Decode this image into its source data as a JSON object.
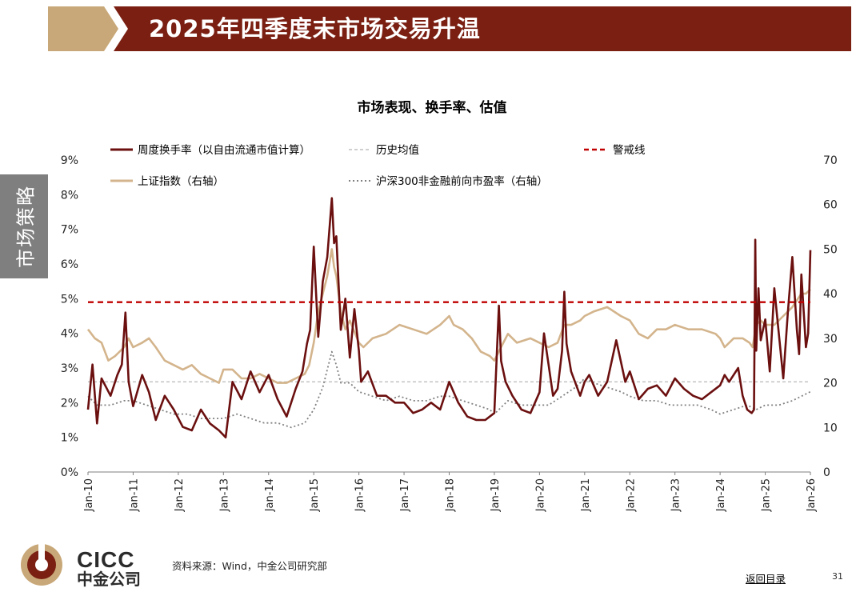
{
  "header": {
    "title": "2025年四季度末市场交易升温"
  },
  "side_tab": {
    "label": "市场策略"
  },
  "footer": {
    "logo_en": "CICC",
    "logo_cn": "中金公司",
    "source": "资料来源：Wind，中金公司研究部",
    "back_link": "返回目录",
    "page_number": "31"
  },
  "colors": {
    "brand": "#7a1f12",
    "turnover": "#6b0f0f",
    "hist_avg": "#bfbfbf",
    "warning": "#c00000",
    "index": "#d3b48c",
    "pe": "#808080",
    "gold": "#c8a878"
  },
  "chart_data": {
    "type": "line",
    "title": "市场表现、换手率、估值",
    "x_ticks": [
      "Jan-10",
      "Jan-11",
      "Jan-12",
      "Jan-13",
      "Jan-14",
      "Jan-15",
      "Jan-16",
      "Jan-17",
      "Jan-18",
      "Jan-19",
      "Jan-20",
      "Jan-21",
      "Jan-22",
      "Jan-23",
      "Jan-24",
      "Jan-25",
      "Jan-26"
    ],
    "x_range": [
      2010.0,
      2026.0
    ],
    "y_left": {
      "range": [
        0,
        9
      ],
      "ticks": [
        "0%",
        "1%",
        "2%",
        "3%",
        "4%",
        "5%",
        "6%",
        "7%",
        "8%",
        "9%"
      ]
    },
    "y_right": {
      "range": [
        0,
        70
      ],
      "ticks": [
        "0",
        "10",
        "20",
        "30",
        "40",
        "50",
        "60",
        "70"
      ]
    },
    "legend": {
      "turnover": "周度换手率（以自由流通市值计算）",
      "hist_avg": "历史均值",
      "warning": "警戒线",
      "index": "上证指数（右轴）",
      "pe": "沪深300非金融前向市盈率（右轴）"
    },
    "series": [
      {
        "name": "周度换手率（以自由流通市值计算）",
        "axis": "left",
        "unit": "%",
        "x": [
          2010.0,
          2010.1,
          2010.2,
          2010.3,
          2010.5,
          2010.65,
          2010.75,
          2010.83,
          2010.9,
          2011.0,
          2011.2,
          2011.35,
          2011.5,
          2011.7,
          2011.9,
          2012.1,
          2012.3,
          2012.5,
          2012.7,
          2012.9,
          2013.05,
          2013.2,
          2013.4,
          2013.6,
          2013.8,
          2014.0,
          2014.2,
          2014.4,
          2014.6,
          2014.75,
          2014.85,
          2014.92,
          2015.0,
          2015.1,
          2015.2,
          2015.3,
          2015.4,
          2015.45,
          2015.5,
          2015.6,
          2015.7,
          2015.8,
          2015.9,
          2016.0,
          2016.05,
          2016.2,
          2016.4,
          2016.6,
          2016.8,
          2017.0,
          2017.2,
          2017.4,
          2017.6,
          2017.8,
          2018.0,
          2018.2,
          2018.4,
          2018.6,
          2018.8,
          2019.0,
          2019.1,
          2019.15,
          2019.25,
          2019.4,
          2019.6,
          2019.8,
          2020.0,
          2020.1,
          2020.2,
          2020.3,
          2020.4,
          2020.5,
          2020.55,
          2020.6,
          2020.7,
          2020.9,
          2021.0,
          2021.1,
          2021.3,
          2021.5,
          2021.7,
          2021.9,
          2022.0,
          2022.2,
          2022.4,
          2022.6,
          2022.8,
          2023.0,
          2023.2,
          2023.4,
          2023.6,
          2023.8,
          2024.0,
          2024.1,
          2024.2,
          2024.4,
          2024.5,
          2024.6,
          2024.7,
          2024.75,
          2024.78,
          2024.8,
          2024.85,
          2024.9,
          2025.0,
          2025.1,
          2025.2,
          2025.3,
          2025.4,
          2025.5,
          2025.6,
          2025.7,
          2025.75,
          2025.8,
          2025.9,
          2025.95,
          2026.0
        ],
        "y": [
          1.8,
          3.1,
          1.4,
          2.7,
          2.2,
          2.8,
          3.1,
          4.6,
          2.6,
          1.9,
          2.8,
          2.3,
          1.5,
          2.2,
          1.8,
          1.3,
          1.2,
          1.8,
          1.4,
          1.2,
          1.0,
          2.6,
          2.1,
          2.9,
          2.3,
          2.8,
          2.1,
          1.6,
          2.4,
          2.9,
          3.7,
          4.1,
          6.5,
          3.9,
          5.5,
          6.2,
          7.9,
          6.6,
          6.8,
          4.1,
          5.0,
          3.3,
          4.7,
          3.5,
          2.6,
          2.9,
          2.2,
          2.2,
          2.0,
          2.0,
          1.7,
          1.8,
          2.0,
          1.8,
          2.6,
          2.0,
          1.6,
          1.5,
          1.5,
          1.7,
          4.8,
          3.2,
          2.6,
          2.2,
          1.8,
          1.7,
          2.3,
          4.0,
          3.1,
          2.2,
          2.4,
          3.5,
          5.2,
          3.7,
          2.9,
          2.2,
          2.6,
          2.8,
          2.2,
          2.6,
          3.8,
          2.6,
          2.9,
          2.1,
          2.4,
          2.5,
          2.2,
          2.7,
          2.4,
          2.2,
          2.1,
          2.3,
          2.5,
          2.8,
          2.6,
          3.0,
          2.2,
          1.8,
          1.7,
          1.8,
          6.7,
          3.5,
          5.3,
          3.8,
          4.4,
          2.9,
          5.3,
          4.0,
          2.7,
          4.6,
          6.2,
          4.1,
          3.4,
          5.7,
          3.6,
          4.0,
          6.4
        ]
      },
      {
        "name": "历史均值",
        "axis": "left",
        "unit": "%",
        "x": [
          2010.0,
          2026.0
        ],
        "y": [
          2.6,
          2.6
        ]
      },
      {
        "name": "警戒线",
        "axis": "left",
        "unit": "%",
        "x": [
          2010.0,
          2026.0
        ],
        "y": [
          4.9,
          4.9
        ]
      },
      {
        "name": "上证指数（右轴）",
        "axis": "right",
        "x": [
          2010.0,
          2010.15,
          2010.3,
          2010.45,
          2010.6,
          2010.8,
          2010.9,
          2011.0,
          2011.2,
          2011.35,
          2011.5,
          2011.7,
          2011.9,
          2012.1,
          2012.3,
          2012.5,
          2012.7,
          2012.9,
          2013.0,
          2013.2,
          2013.4,
          2013.6,
          2013.8,
          2014.0,
          2014.2,
          2014.4,
          2014.6,
          2014.8,
          2014.9,
          2015.0,
          2015.1,
          2015.2,
          2015.3,
          2015.4,
          2015.45,
          2015.5,
          2015.6,
          2015.7,
          2015.8,
          2016.0,
          2016.1,
          2016.3,
          2016.6,
          2016.9,
          2017.2,
          2017.5,
          2017.8,
          2018.0,
          2018.1,
          2018.3,
          2018.5,
          2018.7,
          2018.9,
          2019.0,
          2019.2,
          2019.3,
          2019.5,
          2019.8,
          2020.0,
          2020.2,
          2020.4,
          2020.55,
          2020.7,
          2020.9,
          2021.0,
          2021.2,
          2021.5,
          2021.8,
          2022.0,
          2022.2,
          2022.4,
          2022.6,
          2022.8,
          2023.0,
          2023.3,
          2023.6,
          2023.9,
          2024.0,
          2024.1,
          2024.3,
          2024.5,
          2024.65,
          2024.72,
          2024.8,
          2024.9,
          2025.0,
          2025.2,
          2025.4,
          2025.6,
          2025.8,
          2025.9,
          2026.0
        ],
        "y": [
          32,
          30,
          29,
          25,
          26,
          28,
          30,
          28,
          29,
          30,
          28,
          25,
          24,
          23,
          24,
          22,
          21,
          20,
          23,
          23,
          21,
          21,
          22,
          21,
          20,
          20,
          21,
          22,
          24,
          29,
          36,
          40,
          44,
          50,
          46,
          44,
          36,
          32,
          34,
          29,
          28,
          30,
          31,
          33,
          32,
          31,
          33,
          35,
          33,
          32,
          30,
          27,
          26,
          25,
          29,
          31,
          29,
          30,
          29,
          28,
          29,
          33,
          33,
          34,
          35,
          36,
          37,
          35,
          34,
          31,
          30,
          32,
          32,
          33,
          32,
          32,
          31,
          30,
          28,
          30,
          30,
          29,
          28,
          33,
          34,
          33,
          33,
          35,
          37,
          40,
          40,
          41
        ]
      },
      {
        "name": "沪深300非金融前向市盈率（右轴）",
        "axis": "right",
        "x": [
          2010.0,
          2010.2,
          2010.5,
          2010.8,
          2011.0,
          2011.3,
          2011.6,
          2011.9,
          2012.2,
          2012.5,
          2012.8,
          2013.0,
          2013.3,
          2013.6,
          2013.9,
          2014.2,
          2014.5,
          2014.8,
          2015.0,
          2015.2,
          2015.4,
          2015.5,
          2015.6,
          2015.8,
          2016.0,
          2016.3,
          2016.6,
          2016.9,
          2017.2,
          2017.5,
          2017.8,
          2018.0,
          2018.3,
          2018.6,
          2018.9,
          2019.0,
          2019.3,
          2019.6,
          2019.9,
          2020.2,
          2020.5,
          2020.8,
          2021.0,
          2021.2,
          2021.5,
          2021.8,
          2022.0,
          2022.3,
          2022.6,
          2022.9,
          2023.2,
          2023.5,
          2023.8,
          2024.0,
          2024.3,
          2024.6,
          2024.8,
          2025.0,
          2025.3,
          2025.6,
          2025.8,
          2026.0
        ],
        "y": [
          17,
          15,
          15,
          16,
          16,
          15,
          14,
          13,
          13,
          12,
          12,
          12,
          13,
          12,
          11,
          11,
          10,
          11,
          14,
          19,
          27,
          24,
          20,
          20,
          18,
          17,
          16,
          17,
          16,
          16,
          17,
          17,
          16,
          15,
          14,
          13,
          16,
          15,
          15,
          15,
          17,
          19,
          21,
          20,
          19,
          18,
          17,
          16,
          16,
          15,
          15,
          15,
          14,
          13,
          14,
          15,
          14,
          15,
          15,
          16,
          17,
          18
        ]
      }
    ]
  }
}
